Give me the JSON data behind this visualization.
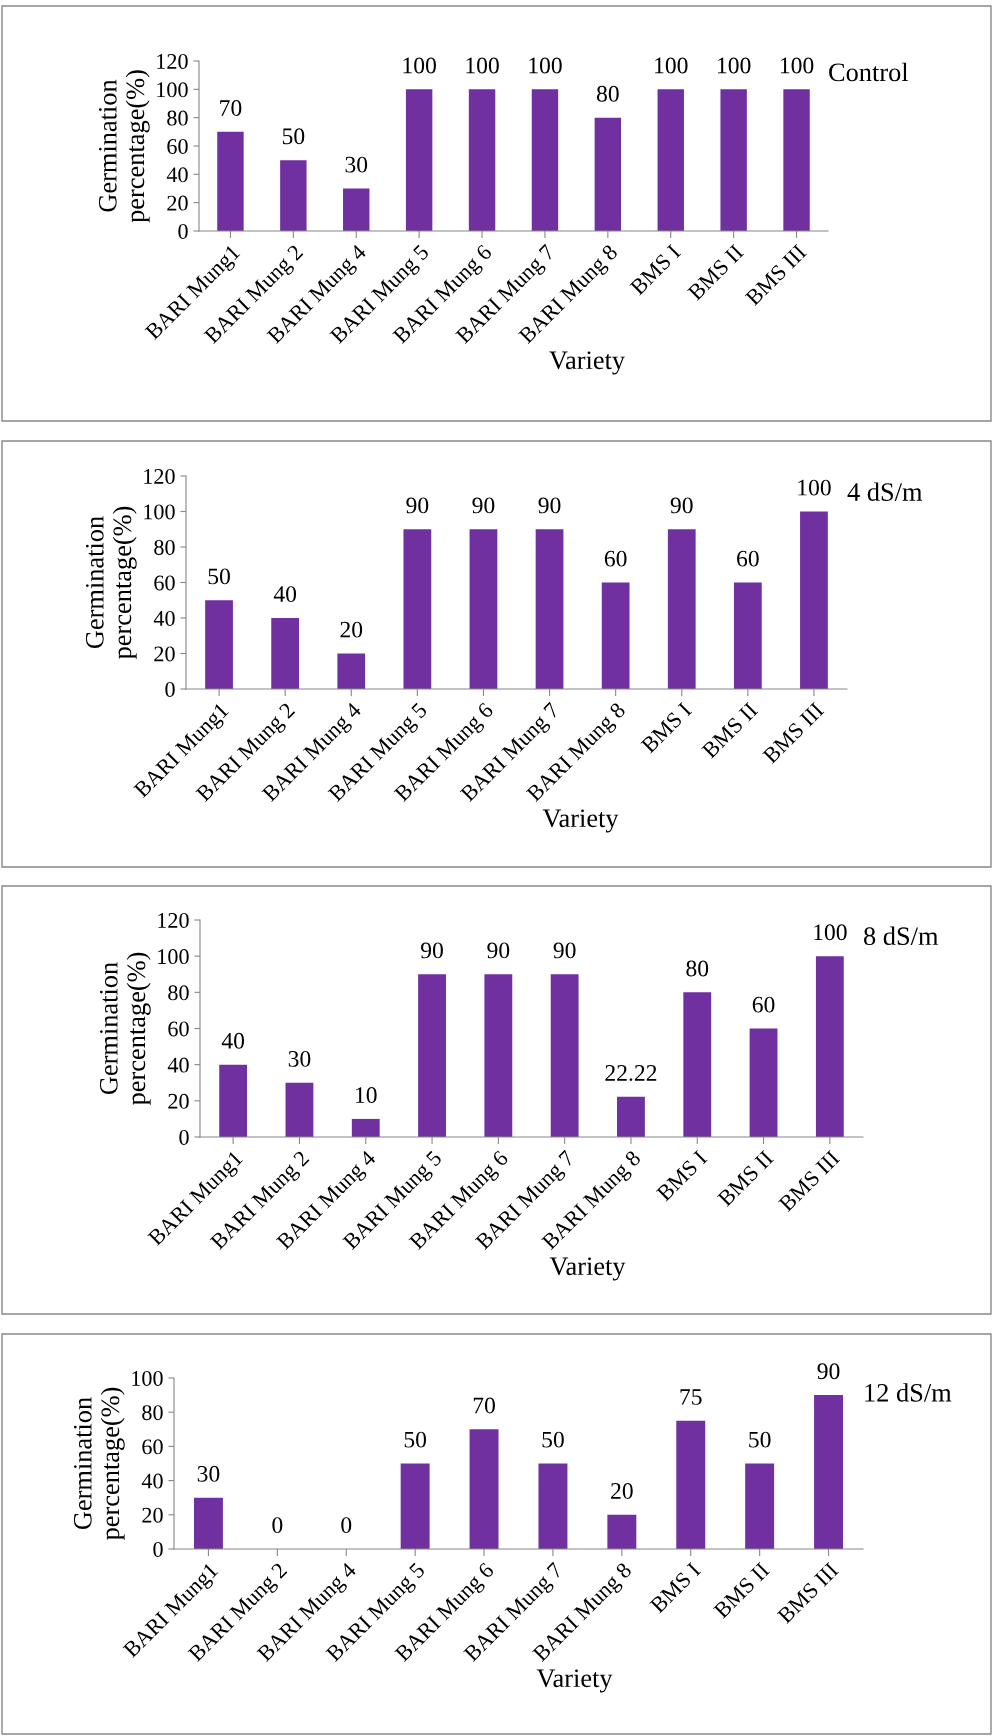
{
  "chart_data": [
    {
      "type": "bar",
      "title": "Control",
      "xlabel": "Variety",
      "ylabel": "Germination\npercentage(%)",
      "categories": [
        "BARI Mung1",
        "BARI Mung 2",
        "BARI Mung 4",
        "BARI Mung 5",
        "BARI Mung 6",
        "BARI Mung 7",
        "BARI Mung 8",
        "BMS I",
        "BMS II",
        "BMS III"
      ],
      "values": [
        70,
        50,
        30,
        100,
        100,
        100,
        80,
        100,
        100,
        100
      ],
      "color": "#7030a0",
      "ylim": [
        0,
        120
      ],
      "yticks": [
        0,
        20,
        40,
        60,
        80,
        100,
        120
      ],
      "data_labels": true,
      "grid": false,
      "legend": false
    },
    {
      "type": "bar",
      "title": "4 dS/m",
      "xlabel": "Variety",
      "ylabel": "Germination\npercentage(%)",
      "categories": [
        "BARI Mung1",
        "BARI Mung 2",
        "BARI Mung 4",
        "BARI Mung 5",
        "BARI Mung 6",
        "BARI Mung 7",
        "BARI Mung 8",
        "BMS I",
        "BMS II",
        "BMS III"
      ],
      "values": [
        50,
        40,
        20,
        90,
        90,
        90,
        60,
        90,
        60,
        100
      ],
      "color": "#7030a0",
      "ylim": [
        0,
        120
      ],
      "yticks": [
        0,
        20,
        40,
        60,
        80,
        100,
        120
      ],
      "data_labels": true,
      "grid": false,
      "legend": false
    },
    {
      "type": "bar",
      "title": "8 dS/m",
      "xlabel": "Variety",
      "ylabel": "Germination\npercentage(%)",
      "categories": [
        "BARI Mung1",
        "BARI Mung 2",
        "BARI Mung 4",
        "BARI Mung 5",
        "BARI Mung 6",
        "BARI Mung 7",
        "BARI Mung 8",
        "BMS I",
        "BMS II",
        "BMS III"
      ],
      "values": [
        40,
        30,
        10,
        90,
        90,
        90,
        22.22,
        80,
        60,
        100
      ],
      "color": "#7030a0",
      "ylim": [
        0,
        120
      ],
      "yticks": [
        0,
        20,
        40,
        60,
        80,
        100,
        120
      ],
      "data_labels": true,
      "grid": false,
      "legend": false
    },
    {
      "type": "bar",
      "title": "12 dS/m",
      "xlabel": "Variety",
      "ylabel": "Germination\npercentage(%)",
      "categories": [
        "BARI Mung1",
        "BARI Mung 2",
        "BARI Mung 4",
        "BARI Mung 5",
        "BARI Mung 6",
        "BARI Mung 7",
        "BARI Mung 8",
        "BMS I",
        "BMS II",
        "BMS III"
      ],
      "values": [
        30,
        0,
        0,
        50,
        70,
        50,
        20,
        75,
        50,
        90
      ],
      "color": "#7030a0",
      "ylim": [
        0,
        100
      ],
      "yticks": [
        0,
        20,
        40,
        60,
        80,
        100
      ],
      "data_labels": true,
      "grid": false,
      "legend": false
    }
  ]
}
